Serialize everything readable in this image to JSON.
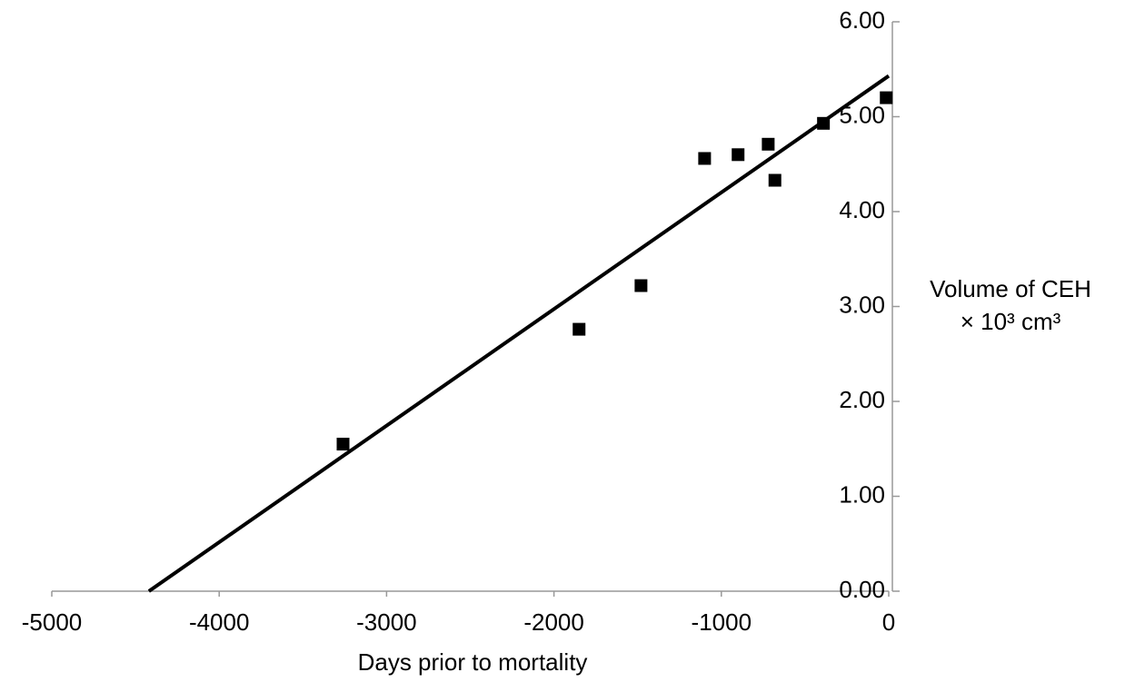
{
  "chart_data": {
    "type": "scatter",
    "x_label": "Days prior to mortality",
    "y_label": [
      "Volume of CEH",
      "× 10³ cm³"
    ],
    "x": [
      -3260,
      -1850,
      -1480,
      -1100,
      -900,
      -720,
      -680,
      -390,
      -15
    ],
    "values": [
      1.55,
      2.76,
      3.22,
      4.56,
      4.6,
      4.71,
      4.33,
      4.93,
      5.2
    ],
    "color": "#000000",
    "trendline": {
      "x": [
        -4420,
        0
      ],
      "values": [
        0,
        5.43
      ],
      "color": "#000000"
    },
    "xlim": [
      -5000,
      0
    ],
    "xticks": [
      -5000,
      -4000,
      -3000,
      -2000,
      -1000,
      0
    ],
    "ylim": [
      0,
      6
    ],
    "yticks": [
      {
        "value": 0,
        "label": "0.00"
      },
      {
        "value": 1,
        "label": "1.00"
      },
      {
        "value": 2,
        "label": "2.00"
      },
      {
        "value": 3,
        "label": "3.00"
      },
      {
        "value": 4,
        "label": "4.00"
      },
      {
        "value": 5,
        "label": "5.00"
      },
      {
        "value": 6,
        "label": "6.00"
      }
    ]
  }
}
